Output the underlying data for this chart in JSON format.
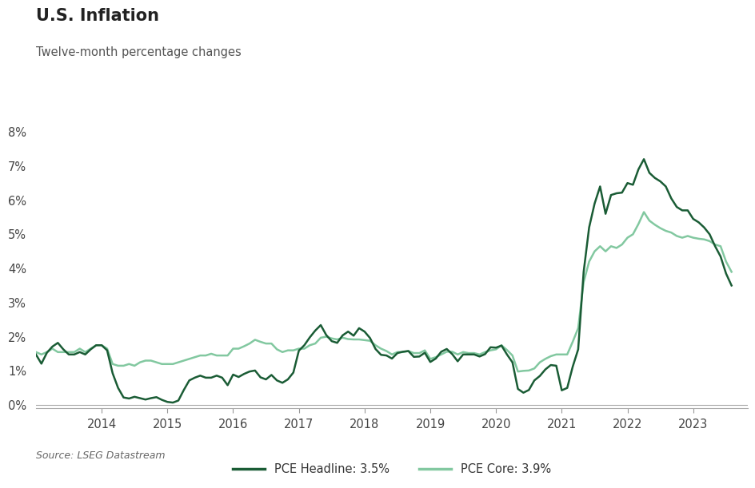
{
  "title": "U.S. Inflation",
  "subtitle": "Twelve-month percentage changes",
  "source": "Source: LSEG Datastream",
  "legend_entries": [
    "PCE Headline: 3.5%",
    "PCE Core: 3.9%"
  ],
  "headline_color": "#1a5c35",
  "core_color": "#82c8a0",
  "background_color": "#ffffff",
  "ylim": [
    -0.001,
    0.08
  ],
  "yticks": [
    0,
    0.01,
    0.02,
    0.03,
    0.04,
    0.05,
    0.06,
    0.07,
    0.08
  ],
  "ytick_labels": [
    "0%",
    "1%",
    "2%",
    "3%",
    "4%",
    "5%",
    "6%",
    "7%",
    "8%"
  ],
  "xtick_positions": [
    2014,
    2015,
    2016,
    2017,
    2018,
    2019,
    2020,
    2021,
    2022,
    2023
  ],
  "xtick_labels": [
    "2014",
    "2015",
    "2016",
    "2017",
    "2018",
    "2019",
    "2020",
    "2021",
    "2022",
    "2023"
  ],
  "xlim": [
    2013.0,
    2023.83
  ],
  "headline_data": [
    0.0148,
    0.0121,
    0.0153,
    0.0171,
    0.0182,
    0.0163,
    0.0148,
    0.0148,
    0.0155,
    0.0148,
    0.0163,
    0.0175,
    0.0175,
    0.016,
    0.0093,
    0.005,
    0.0022,
    0.0019,
    0.0024,
    0.002,
    0.0016,
    0.002,
    0.0023,
    0.0015,
    0.0009,
    0.0007,
    0.0013,
    0.0044,
    0.0072,
    0.008,
    0.0086,
    0.008,
    0.008,
    0.0086,
    0.008,
    0.0058,
    0.0089,
    0.0082,
    0.0091,
    0.0098,
    0.0101,
    0.0081,
    0.0075,
    0.0088,
    0.0072,
    0.0065,
    0.0075,
    0.0095,
    0.0159,
    0.0175,
    0.0198,
    0.0218,
    0.0234,
    0.0205,
    0.0187,
    0.0182,
    0.0204,
    0.0215,
    0.0203,
    0.0225,
    0.0215,
    0.0196,
    0.0164,
    0.0147,
    0.0145,
    0.0136,
    0.0152,
    0.0156,
    0.0158,
    0.0141,
    0.0142,
    0.0153,
    0.0126,
    0.0136,
    0.0156,
    0.0164,
    0.0149,
    0.0128,
    0.0148,
    0.0148,
    0.0148,
    0.0142,
    0.0149,
    0.0169,
    0.0168,
    0.0174,
    0.0148,
    0.0125,
    0.0047,
    0.0036,
    0.0044,
    0.0072,
    0.0085,
    0.0104,
    0.0117,
    0.0115,
    0.0043,
    0.005,
    0.0112,
    0.0163,
    0.039,
    0.052,
    0.059,
    0.064,
    0.056,
    0.0615,
    0.062,
    0.0622,
    0.065,
    0.0645,
    0.069,
    0.072,
    0.068,
    0.0665,
    0.0655,
    0.064,
    0.0605,
    0.058,
    0.057,
    0.057,
    0.0545,
    0.0535,
    0.052,
    0.05,
    0.0465,
    0.0435,
    0.0385,
    0.035
  ],
  "core_data": [
    0.0155,
    0.0148,
    0.0155,
    0.0165,
    0.0155,
    0.0155,
    0.0155,
    0.0155,
    0.0165,
    0.0155,
    0.0165,
    0.0175,
    0.0175,
    0.0165,
    0.012,
    0.0115,
    0.0115,
    0.012,
    0.0115,
    0.0125,
    0.013,
    0.013,
    0.0125,
    0.012,
    0.012,
    0.012,
    0.0125,
    0.013,
    0.0135,
    0.014,
    0.0145,
    0.0145,
    0.015,
    0.0145,
    0.0145,
    0.0145,
    0.0165,
    0.0165,
    0.0172,
    0.018,
    0.0191,
    0.0185,
    0.018,
    0.018,
    0.0163,
    0.0155,
    0.016,
    0.016,
    0.0165,
    0.0165,
    0.0175,
    0.018,
    0.0197,
    0.02,
    0.0195,
    0.0192,
    0.0197,
    0.0193,
    0.0192,
    0.0192,
    0.019,
    0.0188,
    0.0175,
    0.0165,
    0.0158,
    0.0148,
    0.0155,
    0.0155,
    0.0158,
    0.0152,
    0.0152,
    0.016,
    0.0135,
    0.014,
    0.0148,
    0.0156,
    0.0156,
    0.0148,
    0.0155,
    0.0152,
    0.0152,
    0.0148,
    0.0155,
    0.016,
    0.0163,
    0.0175,
    0.0161,
    0.0145,
    0.0098,
    0.01,
    0.0101,
    0.0107,
    0.0125,
    0.0135,
    0.0143,
    0.0148,
    0.0148,
    0.0148,
    0.0185,
    0.0225,
    0.036,
    0.042,
    0.045,
    0.0465,
    0.045,
    0.0465,
    0.046,
    0.047,
    0.049,
    0.05,
    0.053,
    0.0565,
    0.054,
    0.0528,
    0.0518,
    0.051,
    0.0505,
    0.0495,
    0.049,
    0.0495,
    0.049,
    0.0487,
    0.0485,
    0.048,
    0.047,
    0.0465,
    0.042,
    0.039
  ]
}
